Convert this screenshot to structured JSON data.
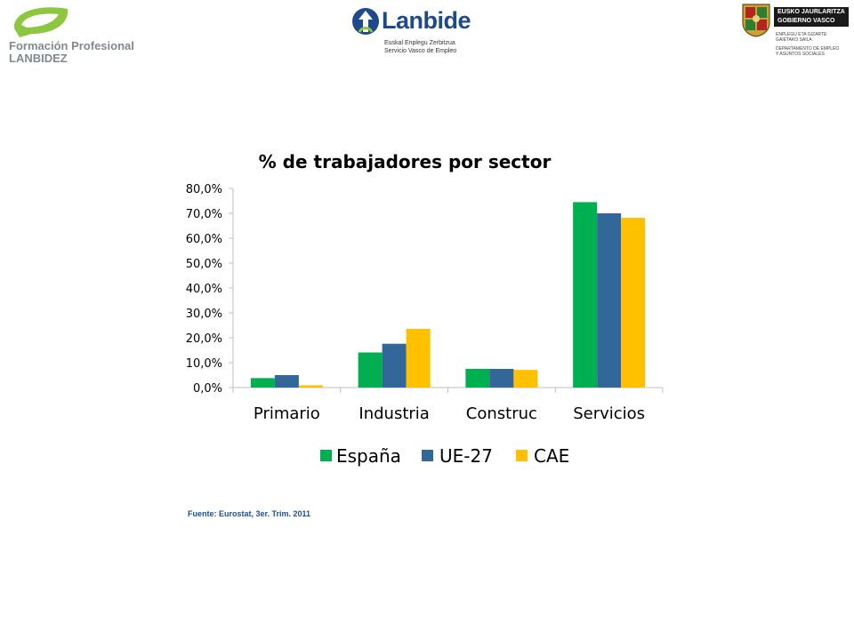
{
  "header": {
    "logo_left": {
      "line1": "Formación Profesional",
      "line2": "LANBIDEZ"
    },
    "logo_center": {
      "name": "Lanbide",
      "sub1": "Euskal Enplegu Zerbitzua",
      "sub2": "Servicio Vasco de Empleo"
    },
    "logo_right": {
      "line1": "EUSKO JAURLARITZA",
      "line2": "GOBIERNO VASCO",
      "dept1": "ENPLEGU ETA GIZARTE",
      "dept2": "GAIETAKO SAILA",
      "dept3": "DEPARTAMENTO DE EMPLEO",
      "dept4": "Y ASUNTOS SOCIALES"
    }
  },
  "colors": {
    "espana": "#00b050",
    "ue27": "#336699",
    "cae": "#ffc000",
    "axis": "#bfbfbf",
    "source": "#1f4e9a"
  },
  "chart_data": {
    "type": "bar",
    "title": "% de trabajadores por sector",
    "categories": [
      "Primario",
      "Industria",
      "Construc",
      "Servicios"
    ],
    "series": [
      {
        "name": "España",
        "values": [
          3.8,
          14.1,
          7.5,
          74.5
        ]
      },
      {
        "name": "UE-27",
        "values": [
          5.0,
          17.6,
          7.5,
          70.0
        ]
      },
      {
        "name": "CAE",
        "values": [
          0.9,
          23.6,
          7.1,
          68.2
        ]
      }
    ],
    "ylim": [
      0,
      80
    ],
    "yticks": [
      "0,0%",
      "10,0%",
      "20,0%",
      "30,0%",
      "40,0%",
      "50,0%",
      "60,0%",
      "70,0%",
      "80,0%"
    ],
    "grid": false,
    "legend": "bottom"
  },
  "source": "Fuente: Eurostat, 3er. Trim. 2011"
}
